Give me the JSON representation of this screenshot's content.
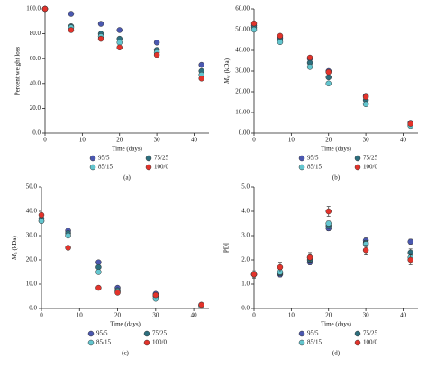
{
  "chart_data": [
    {
      "type": "scatter",
      "caption": "(a)",
      "xlabel": "Time (days)",
      "ylabel": "Percent weight loss",
      "x": [
        0,
        7,
        15,
        20,
        30,
        42
      ],
      "xlim": [
        0,
        44
      ],
      "xticks": [
        0,
        10,
        20,
        30,
        40
      ],
      "ylim": [
        0,
        100
      ],
      "yticks": [
        {
          "value": 0,
          "label": "0.0"
        },
        {
          "value": 20,
          "label": "20.0"
        },
        {
          "value": 40,
          "label": "40.0"
        },
        {
          "value": 60,
          "label": "60.0"
        },
        {
          "value": 80,
          "label": "80.0"
        },
        {
          "value": 100,
          "label": "100.0"
        }
      ],
      "series": [
        {
          "name": "95/5",
          "color": "#4b58b0",
          "values": [
            100,
            96,
            88,
            83,
            73,
            55
          ]
        },
        {
          "name": "75/25",
          "color": "#2d6f7e",
          "values": [
            100,
            86,
            80,
            76,
            67,
            50
          ]
        },
        {
          "name": "85/15",
          "color": "#63c6cf",
          "values": [
            100,
            85,
            78,
            73,
            65,
            47
          ]
        },
        {
          "name": "100/0",
          "color": "#e3332b",
          "values": [
            100,
            83,
            76,
            69,
            63,
            44
          ]
        }
      ]
    },
    {
      "type": "scatter",
      "caption": "(b)",
      "xlabel": "Time (days)",
      "ylabel": {
        "symbol": "M",
        "subscript": "w",
        "unit": "(kDa)"
      },
      "x": [
        0,
        7,
        15,
        20,
        30,
        42
      ],
      "xlim": [
        0,
        44
      ],
      "xticks": [
        0,
        10,
        20,
        30,
        40
      ],
      "ylim": [
        0,
        60
      ],
      "yticks": [
        {
          "value": 0,
          "label": "0.00"
        },
        {
          "value": 10,
          "label": "10.00"
        },
        {
          "value": 20,
          "label": "20.00"
        },
        {
          "value": 30,
          "label": "30.00"
        },
        {
          "value": 40,
          "label": "40.00"
        },
        {
          "value": 50,
          "label": "50.00"
        },
        {
          "value": 60,
          "label": "60.00"
        }
      ],
      "series": [
        {
          "name": "95/5",
          "color": "#4b58b0",
          "values": [
            52,
            46,
            36,
            30,
            18,
            5
          ]
        },
        {
          "name": "75/25",
          "color": "#2d6f7e",
          "values": [
            51,
            45,
            34,
            27,
            16,
            4
          ]
        },
        {
          "name": "85/15",
          "color": "#63c6cf",
          "values": [
            50,
            44,
            32,
            24,
            14,
            3.5
          ]
        },
        {
          "name": "100/0",
          "color": "#e3332b",
          "values": [
            53,
            47,
            36.5,
            29.5,
            17.5,
            4.5
          ]
        }
      ]
    },
    {
      "type": "scatter",
      "caption": "(c)",
      "xlabel": "Time (days)",
      "ylabel": {
        "symbol": "M",
        "subscript": "n",
        "unit": "(kDa)"
      },
      "x": [
        0,
        7,
        15,
        20,
        30,
        42
      ],
      "xlim": [
        0,
        44
      ],
      "xticks": [
        0,
        10,
        20,
        30,
        40
      ],
      "ylim": [
        0,
        50
      ],
      "yticks": [
        {
          "value": 0,
          "label": "0.0"
        },
        {
          "value": 10,
          "label": "10.0"
        },
        {
          "value": 20,
          "label": "20.0"
        },
        {
          "value": 30,
          "label": "30.0"
        },
        {
          "value": 40,
          "label": "40.0"
        },
        {
          "value": 50,
          "label": "50.0"
        }
      ],
      "series": [
        {
          "name": "95/5",
          "color": "#4b58b0",
          "values": [
            36,
            32,
            19,
            8.5,
            6,
            1.5
          ]
        },
        {
          "name": "75/25",
          "color": "#2d6f7e",
          "values": [
            37,
            31,
            17,
            7.5,
            5,
            1.2
          ]
        },
        {
          "name": "85/15",
          "color": "#63c6cf",
          "values": [
            36,
            30,
            15,
            7,
            4,
            1
          ]
        },
        {
          "name": "100/0",
          "color": "#e3332b",
          "values": [
            38.5,
            25,
            8.5,
            6.5,
            5.5,
            1.5
          ]
        }
      ]
    },
    {
      "type": "scatter",
      "caption": "(d)",
      "xlabel": "Time (days)",
      "ylabel": "PDI",
      "x": [
        0,
        7,
        15,
        20,
        30,
        42
      ],
      "xlim": [
        0,
        44
      ],
      "xticks": [
        0,
        10,
        20,
        30,
        40
      ],
      "ylim": [
        0,
        5
      ],
      "yticks": [
        {
          "value": 0,
          "label": "0.0"
        },
        {
          "value": 1,
          "label": "1.0"
        },
        {
          "value": 2,
          "label": "2.0"
        },
        {
          "value": 3,
          "label": "3.0"
        },
        {
          "value": 4,
          "label": "4.0"
        },
        {
          "value": 5,
          "label": "5.0"
        }
      ],
      "series": [
        {
          "name": "95/5",
          "color": "#4b58b0",
          "values": [
            1.4,
            1.4,
            1.9,
            3.3,
            2.8,
            2.75
          ],
          "errors": [
            0.1,
            0.1,
            0.1,
            0.1,
            0.1,
            0.1
          ]
        },
        {
          "name": "75/25",
          "color": "#2d6f7e",
          "values": [
            1.4,
            1.45,
            2.0,
            3.4,
            2.7,
            2.3
          ],
          "errors": [
            0.1,
            0.1,
            0.1,
            0.1,
            0.1,
            0.15
          ]
        },
        {
          "name": "85/15",
          "color": "#63c6cf",
          "values": [
            1.4,
            1.5,
            2.1,
            3.5,
            2.65,
            2.1
          ],
          "errors": [
            0.1,
            0.1,
            0.1,
            0.1,
            0.1,
            0.15
          ]
        },
        {
          "name": "100/0",
          "color": "#e3332b",
          "values": [
            1.4,
            1.7,
            2.1,
            4.0,
            2.4,
            2.0
          ],
          "errors": [
            0.15,
            0.2,
            0.2,
            0.2,
            0.2,
            0.2
          ]
        }
      ]
    }
  ]
}
